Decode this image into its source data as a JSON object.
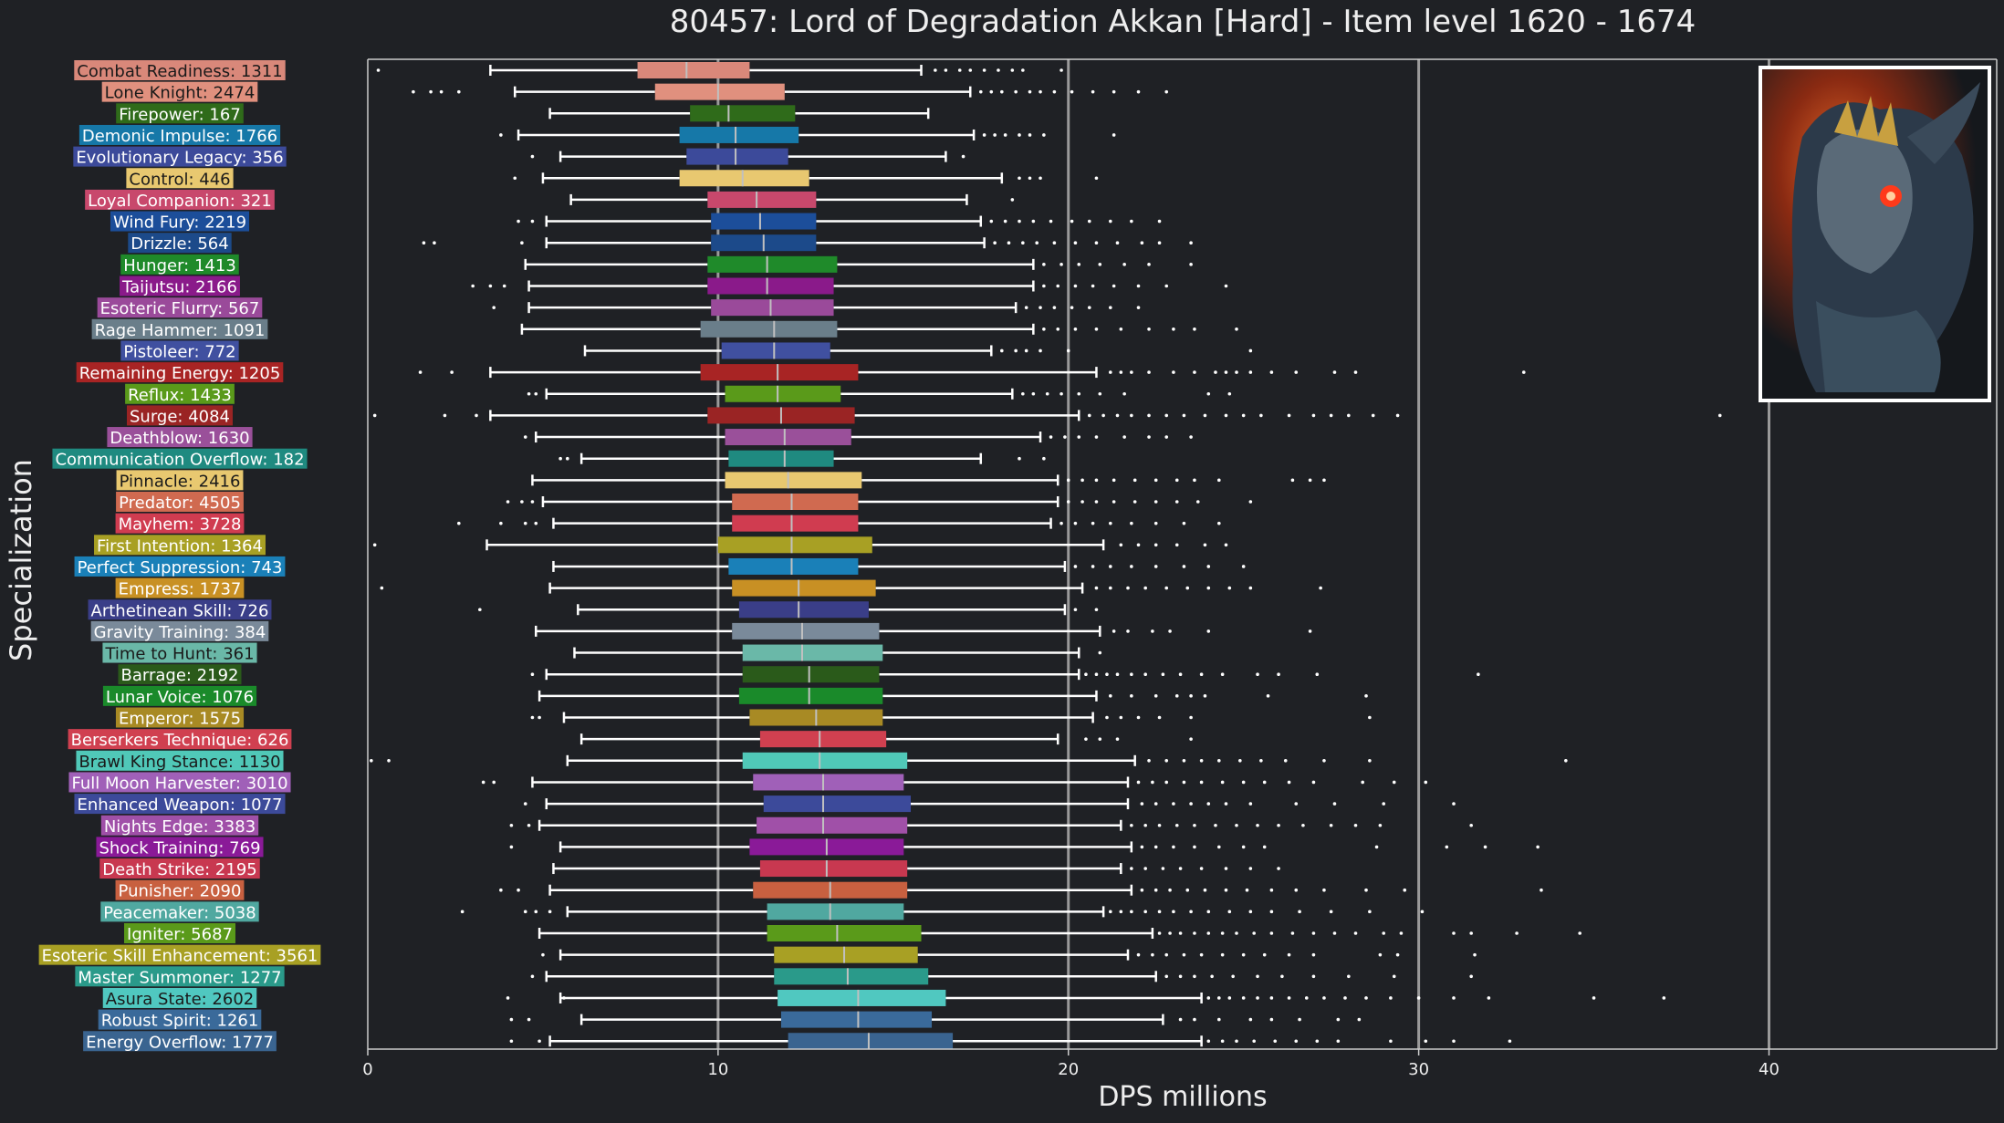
{
  "chart_data": {
    "type": "box",
    "title": "80457: Lord of Degradation Akkan [Hard] - Item level 1620 - 1674",
    "xlabel": "DPS millions",
    "ylabel": "Specialization",
    "xlim": [
      0,
      46.5
    ],
    "xticks": [
      0,
      10,
      20,
      30,
      40
    ],
    "grid": "vertical lines at 10, 20, 30, 40",
    "colors": {
      "background": "#1f2125",
      "text": "#eeeeee",
      "grid": "#9a9a9a",
      "whisker": "#ffffff",
      "median": "#c0c0c0"
    },
    "inset_image": "boss-portrait-icon",
    "series": [
      {
        "label": "Combat Readiness: 1311",
        "color": "#d9887a",
        "whisker_low": 3.5,
        "q1": 7.7,
        "median": 9.1,
        "q3": 10.9,
        "whisker_high": 15.8,
        "outliers": [
          0.3,
          16.2,
          16.5,
          16.9,
          17.2,
          17.6,
          18.0,
          18.4,
          18.7,
          19.8
        ]
      },
      {
        "label": "Lone Knight: 2474",
        "color": "#e0907e",
        "whisker_low": 4.2,
        "q1": 8.2,
        "median": 10.0,
        "q3": 11.9,
        "whisker_high": 17.2,
        "outliers": [
          1.3,
          1.8,
          2.1,
          2.6,
          17.5,
          17.8,
          18.1,
          18.5,
          18.9,
          19.2,
          19.6,
          20.1,
          20.7,
          21.3,
          22.0,
          22.8
        ]
      },
      {
        "label": "Firepower: 167",
        "color": "#2f6b1a",
        "whisker_low": 5.2,
        "q1": 9.2,
        "median": 10.3,
        "q3": 12.2,
        "whisker_high": 16.0,
        "outliers": []
      },
      {
        "label": "Demonic Impulse: 1766",
        "color": "#1678a8",
        "whisker_low": 4.3,
        "q1": 8.9,
        "median": 10.5,
        "q3": 12.3,
        "whisker_high": 17.3,
        "outliers": [
          3.8,
          17.6,
          17.9,
          18.2,
          18.6,
          18.9,
          19.3,
          21.3
        ]
      },
      {
        "label": "Evolutionary Legacy: 356",
        "color": "#3c4a9a",
        "whisker_low": 5.5,
        "q1": 9.1,
        "median": 10.5,
        "q3": 12.0,
        "whisker_high": 16.5,
        "outliers": [
          4.7,
          17.0
        ]
      },
      {
        "label": "Control: 446",
        "color": "#e8c870",
        "whisker_low": 5.0,
        "q1": 8.9,
        "median": 10.7,
        "q3": 12.6,
        "whisker_high": 18.1,
        "outliers": [
          4.2,
          18.6,
          18.9,
          19.2,
          20.8
        ]
      },
      {
        "label": "Loyal Companion: 321",
        "color": "#c8486c",
        "whisker_low": 5.8,
        "q1": 9.7,
        "median": 11.1,
        "q3": 12.8,
        "whisker_high": 17.1,
        "outliers": [
          18.4
        ]
      },
      {
        "label": "Wind Fury: 2219",
        "color": "#1c4e9a",
        "whisker_low": 5.1,
        "q1": 9.8,
        "median": 11.2,
        "q3": 12.8,
        "whisker_high": 17.5,
        "outliers": [
          4.3,
          4.7,
          17.8,
          18.2,
          18.6,
          19.0,
          19.5,
          20.1,
          20.6,
          21.2,
          21.8,
          22.6
        ]
      },
      {
        "label": "Drizzle: 564",
        "color": "#1c4a8a",
        "whisker_low": 5.1,
        "q1": 9.8,
        "median": 11.3,
        "q3": 12.8,
        "whisker_high": 17.6,
        "outliers": [
          1.6,
          1.9,
          4.4,
          17.9,
          18.3,
          18.7,
          19.1,
          19.6,
          20.2,
          20.8,
          21.4,
          22.1,
          22.6,
          23.5
        ]
      },
      {
        "label": "Hunger: 1413",
        "color": "#1f8a2a",
        "whisker_low": 4.5,
        "q1": 9.7,
        "median": 11.4,
        "q3": 13.4,
        "whisker_high": 19.0,
        "outliers": [
          19.3,
          19.8,
          20.3,
          20.9,
          21.6,
          22.3,
          23.5
        ]
      },
      {
        "label": "Taijutsu: 2166",
        "color": "#8a1a8a",
        "whisker_low": 4.6,
        "q1": 9.7,
        "median": 11.4,
        "q3": 13.3,
        "whisker_high": 19.0,
        "outliers": [
          3.0,
          3.5,
          3.9,
          19.3,
          19.7,
          20.2,
          20.7,
          21.3,
          22.0,
          22.8,
          24.5
        ]
      },
      {
        "label": "Esoteric Flurry: 567",
        "color": "#9a4a9a",
        "whisker_low": 4.6,
        "q1": 9.8,
        "median": 11.5,
        "q3": 13.3,
        "whisker_high": 18.5,
        "outliers": [
          3.6,
          18.8,
          19.2,
          19.6,
          20.1,
          20.6,
          21.2,
          22.0
        ]
      },
      {
        "label": "Rage Hammer: 1091",
        "color": "#6a7e8a",
        "whisker_low": 4.4,
        "q1": 9.5,
        "median": 11.6,
        "q3": 13.4,
        "whisker_high": 19.0,
        "outliers": [
          19.3,
          19.7,
          20.2,
          20.8,
          21.5,
          22.3,
          23.0,
          23.6,
          24.8
        ]
      },
      {
        "label": "Pistoleer: 772",
        "color": "#4050a0",
        "whisker_low": 6.2,
        "q1": 10.1,
        "median": 11.6,
        "q3": 13.2,
        "whisker_high": 17.8,
        "outliers": [
          18.1,
          18.5,
          18.8,
          19.2,
          20.0,
          25.2
        ]
      },
      {
        "label": "Remaining Energy: 1205",
        "color": "#a82424",
        "whisker_low": 3.5,
        "q1": 9.5,
        "median": 11.7,
        "q3": 14.0,
        "whisker_high": 20.8,
        "outliers": [
          1.5,
          2.4,
          21.2,
          21.5,
          21.8,
          22.3,
          23.0,
          23.6,
          24.2,
          24.5,
          24.8,
          25.2,
          25.8,
          26.5,
          27.6,
          28.2,
          33.0
        ]
      },
      {
        "label": "Reflux: 1433",
        "color": "#5a9a1a",
        "whisker_low": 5.1,
        "q1": 10.2,
        "median": 11.7,
        "q3": 13.5,
        "whisker_high": 18.4,
        "outliers": [
          4.6,
          4.8,
          18.7,
          19.0,
          19.4,
          19.8,
          20.3,
          20.9,
          21.6,
          24.0,
          24.6
        ]
      },
      {
        "label": "Surge: 4084",
        "color": "#9a2424",
        "whisker_low": 3.5,
        "q1": 9.7,
        "median": 11.8,
        "q3": 13.9,
        "whisker_high": 20.3,
        "outliers": [
          0.2,
          2.2,
          3.1,
          20.6,
          21.0,
          21.4,
          21.8,
          22.3,
          22.8,
          23.3,
          23.9,
          24.5,
          25.0,
          25.5,
          26.3,
          27.0,
          27.5,
          28.0,
          28.7,
          29.4,
          38.6
        ]
      },
      {
        "label": "Deathblow: 1630",
        "color": "#9a509a",
        "whisker_low": 4.8,
        "q1": 10.2,
        "median": 11.9,
        "q3": 13.8,
        "whisker_high": 19.2,
        "outliers": [
          4.5,
          19.5,
          19.9,
          20.3,
          20.8,
          21.6,
          22.3,
          22.8,
          23.5
        ]
      },
      {
        "label": "Communication Overflow: 182",
        "color": "#1f8a80",
        "whisker_low": 6.1,
        "q1": 10.3,
        "median": 11.9,
        "q3": 13.3,
        "whisker_high": 17.5,
        "outliers": [
          5.5,
          5.7,
          18.6,
          19.3
        ]
      },
      {
        "label": "Pinnacle: 2416",
        "color": "#e8c870",
        "whisker_low": 4.7,
        "q1": 10.2,
        "median": 12.0,
        "q3": 14.1,
        "whisker_high": 19.7,
        "outliers": [
          20.0,
          20.4,
          20.8,
          21.3,
          21.9,
          22.5,
          23.1,
          23.6,
          24.3,
          26.4,
          26.9,
          27.3
        ]
      },
      {
        "label": "Predator: 4505",
        "color": "#d06a50",
        "whisker_low": 5.0,
        "q1": 10.4,
        "median": 12.1,
        "q3": 14.0,
        "whisker_high": 19.7,
        "outliers": [
          4.0,
          4.4,
          4.7,
          20.0,
          20.4,
          20.8,
          21.3,
          21.9,
          22.5,
          23.1,
          23.7,
          25.2
        ]
      },
      {
        "label": "Mayhem: 3728",
        "color": "#d03c50",
        "whisker_low": 5.3,
        "q1": 10.4,
        "median": 12.1,
        "q3": 14.0,
        "whisker_high": 19.5,
        "outliers": [
          2.6,
          3.8,
          4.5,
          4.8,
          19.8,
          20.2,
          20.7,
          21.2,
          21.8,
          22.5,
          23.3,
          24.3
        ]
      },
      {
        "label": "First Intention: 1364",
        "color": "#a8a024",
        "whisker_low": 3.4,
        "q1": 10.0,
        "median": 12.1,
        "q3": 14.4,
        "whisker_high": 21.0,
        "outliers": [
          0.2,
          21.5,
          22.0,
          22.5,
          23.1,
          23.9,
          24.5
        ]
      },
      {
        "label": "Perfect Suppression: 743",
        "color": "#1a80b8",
        "whisker_low": 5.3,
        "q1": 10.3,
        "median": 12.1,
        "q3": 14.0,
        "whisker_high": 19.9,
        "outliers": [
          20.2,
          20.7,
          21.2,
          21.8,
          22.5,
          23.3,
          24.0,
          25.0
        ]
      },
      {
        "label": "Empress: 1737",
        "color": "#c89024",
        "whisker_low": 5.2,
        "q1": 10.4,
        "median": 12.3,
        "q3": 14.5,
        "whisker_high": 20.4,
        "outliers": [
          0.4,
          20.8,
          21.2,
          21.7,
          22.2,
          22.8,
          23.4,
          24.0,
          24.6,
          25.2,
          27.2
        ]
      },
      {
        "label": "Arthetinean Skill: 726",
        "color": "#3a3e88",
        "whisker_low": 6.0,
        "q1": 10.6,
        "median": 12.3,
        "q3": 14.3,
        "whisker_high": 19.9,
        "outliers": [
          3.2,
          20.2,
          20.8
        ]
      },
      {
        "label": "Gravity Training: 384",
        "color": "#7a8a9a",
        "whisker_low": 4.8,
        "q1": 10.4,
        "median": 12.4,
        "q3": 14.6,
        "whisker_high": 20.9,
        "outliers": [
          21.3,
          21.7,
          22.4,
          22.9,
          24.0,
          26.9
        ]
      },
      {
        "label": "Time to Hunt: 361",
        "color": "#6ab8a8",
        "whisker_low": 5.9,
        "q1": 10.7,
        "median": 12.4,
        "q3": 14.7,
        "whisker_high": 20.3,
        "outliers": [
          20.9
        ]
      },
      {
        "label": "Barrage: 2192",
        "color": "#2a5a1a",
        "whisker_low": 5.1,
        "q1": 10.7,
        "median": 12.6,
        "q3": 14.6,
        "whisker_high": 20.3,
        "outliers": [
          4.7,
          20.5,
          20.8,
          21.1,
          21.4,
          21.8,
          22.2,
          22.7,
          23.2,
          23.8,
          24.4,
          25.4,
          26.0,
          27.1,
          31.7
        ]
      },
      {
        "label": "Lunar Voice: 1076",
        "color": "#1a8a2a",
        "whisker_low": 4.9,
        "q1": 10.6,
        "median": 12.6,
        "q3": 14.7,
        "whisker_high": 20.8,
        "outliers": [
          21.2,
          21.8,
          22.5,
          23.1,
          23.5,
          23.9,
          25.7,
          28.5
        ]
      },
      {
        "label": "Emperor: 1575",
        "color": "#a88a24",
        "whisker_low": 5.6,
        "q1": 10.9,
        "median": 12.8,
        "q3": 14.7,
        "whisker_high": 20.7,
        "outliers": [
          4.7,
          4.9,
          21.1,
          21.5,
          22.0,
          22.6,
          23.5,
          28.6
        ]
      },
      {
        "label": "Berserkers Technique: 626",
        "color": "#d04050",
        "whisker_low": 6.1,
        "q1": 11.2,
        "median": 12.9,
        "q3": 14.8,
        "whisker_high": 19.7,
        "outliers": [
          20.5,
          20.9,
          21.4,
          23.5
        ]
      },
      {
        "label": "Brawl King Stance: 1130",
        "color": "#50c8b8",
        "whisker_low": 5.7,
        "q1": 10.7,
        "median": 12.9,
        "q3": 15.4,
        "whisker_high": 21.9,
        "outliers": [
          0.1,
          0.6,
          22.3,
          22.8,
          23.3,
          23.8,
          24.3,
          24.9,
          25.5,
          26.2,
          27.3,
          28.6,
          34.2
        ]
      },
      {
        "label": "Full Moon Harvester: 3010",
        "color": "#a060b8",
        "whisker_low": 4.7,
        "q1": 11.0,
        "median": 13.0,
        "q3": 15.3,
        "whisker_high": 21.7,
        "outliers": [
          3.3,
          3.6,
          22.0,
          22.4,
          22.8,
          23.3,
          23.8,
          24.4,
          25.0,
          25.6,
          26.3,
          27.0,
          28.4,
          29.3,
          30.2
        ]
      },
      {
        "label": "Enhanced Weapon: 1077",
        "color": "#3c4a9a",
        "whisker_low": 5.1,
        "q1": 11.3,
        "median": 13.0,
        "q3": 15.5,
        "whisker_high": 21.7,
        "outliers": [
          4.5,
          22.1,
          22.5,
          23.0,
          23.5,
          24.0,
          24.5,
          25.2,
          26.5,
          27.6,
          29.0,
          31.0
        ]
      },
      {
        "label": "Nights Edge: 3383",
        "color": "#a050a8",
        "whisker_low": 4.9,
        "q1": 11.1,
        "median": 13.0,
        "q3": 15.4,
        "whisker_high": 21.5,
        "outliers": [
          4.1,
          4.6,
          21.8,
          22.2,
          22.6,
          23.1,
          23.6,
          24.2,
          24.8,
          25.4,
          26.0,
          26.7,
          27.5,
          28.2,
          28.9,
          31.5
        ]
      },
      {
        "label": "Shock Training: 769",
        "color": "#8a1a98",
        "whisker_low": 5.5,
        "q1": 10.9,
        "median": 13.1,
        "q3": 15.3,
        "whisker_high": 21.8,
        "outliers": [
          4.1,
          22.1,
          22.5,
          23.0,
          23.6,
          24.3,
          25.0,
          25.6,
          28.8,
          30.8,
          31.9,
          33.4
        ]
      },
      {
        "label": "Death Strike: 2195",
        "color": "#c83850",
        "whisker_low": 5.3,
        "q1": 11.2,
        "median": 13.1,
        "q3": 15.4,
        "whisker_high": 21.5,
        "outliers": [
          21.8,
          22.2,
          22.7,
          23.2,
          23.8,
          24.5,
          25.2,
          26.0
        ]
      },
      {
        "label": "Punisher: 2090",
        "color": "#c86040",
        "whisker_low": 5.2,
        "q1": 11.0,
        "median": 13.2,
        "q3": 15.4,
        "whisker_high": 21.8,
        "outliers": [
          3.8,
          4.3,
          22.1,
          22.5,
          22.9,
          23.4,
          23.9,
          24.5,
          25.1,
          25.8,
          26.5,
          27.3,
          28.5,
          29.6,
          33.5
        ]
      },
      {
        "label": "Peacemaker: 5038",
        "color": "#50a8a0",
        "whisker_low": 5.7,
        "q1": 11.4,
        "median": 13.2,
        "q3": 15.3,
        "whisker_high": 21.0,
        "outliers": [
          2.7,
          4.5,
          4.8,
          5.2,
          21.2,
          21.5,
          21.8,
          22.2,
          22.6,
          23.0,
          23.5,
          24.0,
          24.6,
          25.2,
          25.8,
          26.6,
          27.5,
          28.6,
          30.1
        ]
      },
      {
        "label": "Igniter: 5687",
        "color": "#5a9a1a",
        "whisker_low": 4.9,
        "q1": 11.4,
        "median": 13.4,
        "q3": 15.8,
        "whisker_high": 22.4,
        "outliers": [
          22.6,
          22.9,
          23.2,
          23.6,
          24.0,
          24.4,
          24.8,
          25.3,
          25.8,
          26.4,
          27.0,
          27.6,
          28.2,
          29.0,
          29.5,
          31.0,
          31.5,
          32.8,
          34.6
        ]
      },
      {
        "label": "Esoteric Skill Enhancement: 3561",
        "color": "#a8a024",
        "whisker_low": 5.5,
        "q1": 11.6,
        "median": 13.6,
        "q3": 15.7,
        "whisker_high": 21.7,
        "outliers": [
          5.0,
          22.0,
          22.4,
          22.8,
          23.3,
          23.8,
          24.4,
          25.0,
          25.6,
          26.3,
          27.0,
          28.9,
          29.4,
          31.6
        ]
      },
      {
        "label": "Master Summoner: 1277",
        "color": "#2a9a8a",
        "whisker_low": 5.1,
        "q1": 11.6,
        "median": 13.7,
        "q3": 16.0,
        "whisker_high": 22.5,
        "outliers": [
          4.7,
          22.8,
          23.2,
          23.6,
          24.1,
          24.7,
          25.4,
          26.1,
          27.0,
          28.0,
          29.3,
          31.5
        ]
      },
      {
        "label": "Asura State: 2602",
        "color": "#50c8c0",
        "whisker_low": 5.5,
        "q1": 11.7,
        "median": 14.0,
        "q3": 16.5,
        "whisker_high": 23.8,
        "outliers": [
          4.0,
          5.6,
          24.0,
          24.3,
          24.6,
          25.0,
          25.4,
          25.8,
          26.3,
          26.8,
          27.3,
          27.9,
          28.5,
          29.2,
          30.0,
          31.0,
          32.0,
          35.0,
          37.0
        ]
      },
      {
        "label": "Robust Spirit: 1261",
        "color": "#3a6a9a",
        "whisker_low": 6.1,
        "q1": 11.8,
        "median": 14.0,
        "q3": 16.1,
        "whisker_high": 22.7,
        "outliers": [
          4.1,
          4.6,
          23.2,
          23.6,
          24.3,
          25.2,
          25.8,
          26.6,
          27.7,
          28.3
        ]
      },
      {
        "label": "Energy Overflow: 1777",
        "color": "#3a6490",
        "whisker_low": 5.2,
        "q1": 12.0,
        "median": 14.3,
        "q3": 16.7,
        "whisker_high": 23.8,
        "outliers": [
          4.1,
          4.9,
          24.0,
          24.4,
          24.8,
          25.3,
          25.9,
          26.5,
          27.1,
          27.7,
          29.2,
          30.2,
          31.0,
          32.6
        ]
      }
    ]
  }
}
